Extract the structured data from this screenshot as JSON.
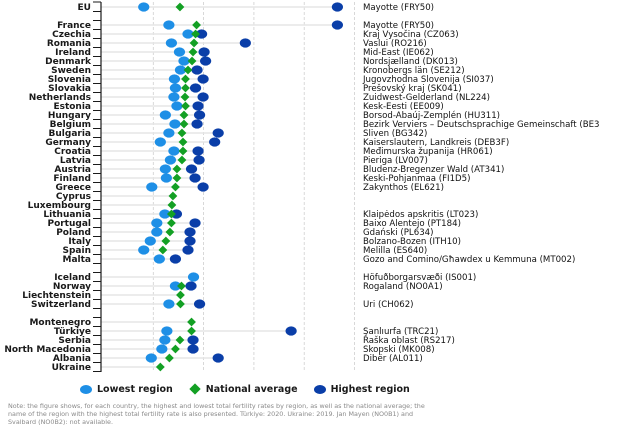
{
  "colors": {
    "lowest": "#1e8fe6",
    "average": "#13a024",
    "highest": "#0a3ea8",
    "row_line": "#e6e6e6",
    "grid": "#cfcfcf",
    "axis": "#1a1a1a"
  },
  "chart_data": {
    "type": "dot-plot",
    "title": "",
    "xlabel": "",
    "ylabel": "",
    "xlim": [
      0,
      5
    ],
    "x_gridlines": [
      1,
      2,
      3,
      4,
      5
    ],
    "x_tick_labels_shown": false,
    "legend_position": "bottom",
    "legend": [
      "Lowest region",
      "National average",
      "Highest region"
    ],
    "groups": [
      {
        "rows": [
          {
            "country": "EU",
            "low": 0.81,
            "avg": 1.53,
            "high": 4.66,
            "high_region": "Mayotte (FRY50)"
          }
        ]
      },
      {
        "rows": [
          {
            "country": "France",
            "low": 1.31,
            "avg": 1.86,
            "high": 4.66,
            "high_region": "Mayotte (FRY50)"
          },
          {
            "country": "Czechia",
            "low": 1.69,
            "avg": 1.84,
            "high": 1.96,
            "high_region": "Kraj Vysočina (CZ063)"
          },
          {
            "country": "Romania",
            "low": 1.36,
            "avg": 1.81,
            "high": 2.83,
            "high_region": "Vaslui (RO216)"
          },
          {
            "country": "Ireland",
            "low": 1.52,
            "avg": 1.79,
            "high": 2.01,
            "high_region": "Mid-East (IE062)"
          },
          {
            "country": "Denmark",
            "low": 1.61,
            "avg": 1.77,
            "high": 2.04,
            "high_region": "Nordsjælland (DK013)"
          },
          {
            "country": "Sweden",
            "low": 1.54,
            "avg": 1.69,
            "high": 1.87,
            "high_region": "Kronobergs län (SE212)"
          },
          {
            "country": "Slovenia",
            "low": 1.42,
            "avg": 1.64,
            "high": 1.99,
            "high_region": "Jugovzhodna Slovenija (SI037)"
          },
          {
            "country": "Slovakia",
            "low": 1.44,
            "avg": 1.64,
            "high": 1.84,
            "high_region": "Prešovský kraj (SK041)"
          },
          {
            "country": "Netherlands",
            "low": 1.41,
            "avg": 1.63,
            "high": 1.99,
            "high_region": "Zuidwest-Gelderland (NL224)"
          },
          {
            "country": "Estonia",
            "low": 1.47,
            "avg": 1.64,
            "high": 1.89,
            "high_region": "Kesk-Eesti (EE009)"
          },
          {
            "country": "Hungary",
            "low": 1.24,
            "avg": 1.61,
            "high": 1.92,
            "high_region": "Borsod-Abaúj-Zemplén (HU311)"
          },
          {
            "country": "Belgium",
            "low": 1.43,
            "avg": 1.61,
            "high": 1.87,
            "high_region": "Bezirk Verviers – Deutschsprachige Gemeinschaft (BE3"
          },
          {
            "country": "Bulgaria",
            "low": 1.31,
            "avg": 1.57,
            "high": 2.29,
            "high_region": "Sliven (BG342)"
          },
          {
            "country": "Germany",
            "low": 1.14,
            "avg": 1.59,
            "high": 2.22,
            "high_region": "Kaiserslautern, Landkreis (DEB3F)"
          },
          {
            "country": "Croatia",
            "low": 1.41,
            "avg": 1.59,
            "high": 1.89,
            "high_region": "Međimurska županija (HR061)"
          },
          {
            "country": "Latvia",
            "low": 1.34,
            "avg": 1.57,
            "high": 1.91,
            "high_region": "Pieriga (LV007)"
          },
          {
            "country": "Austria",
            "low": 1.24,
            "avg": 1.47,
            "high": 1.76,
            "high_region": "Bludenz-Bregenzer Wald (AT341)"
          },
          {
            "country": "Finland",
            "low": 1.26,
            "avg": 1.47,
            "high": 1.83,
            "high_region": "Keski-Pohjanmaa (FI1D5)"
          },
          {
            "country": "Greece",
            "low": 0.97,
            "avg": 1.44,
            "high": 1.99,
            "high_region": "Zakynthos (EL621)"
          },
          {
            "country": "Cyprus",
            "low": null,
            "avg": 1.39,
            "high": null,
            "high_region": ""
          },
          {
            "country": "Luxembourg",
            "low": null,
            "avg": 1.37,
            "high": null,
            "high_region": ""
          },
          {
            "country": "Lithuania",
            "low": 1.23,
            "avg": 1.36,
            "high": 1.46,
            "high_region": "Klaipėdos apskritis (LT023)"
          },
          {
            "country": "Portugal",
            "low": 1.07,
            "avg": 1.36,
            "high": 1.83,
            "high_region": "Baixo Alentejo (PT184)"
          },
          {
            "country": "Poland",
            "low": 1.07,
            "avg": 1.33,
            "high": 1.73,
            "high_region": "Gdański (PL634)"
          },
          {
            "country": "Italy",
            "low": 0.94,
            "avg": 1.25,
            "high": 1.73,
            "high_region": "Bolzano-Bozen (ITH10)"
          },
          {
            "country": "Spain",
            "low": 0.81,
            "avg": 1.19,
            "high": 1.69,
            "high_region": "Melilla (ES640)"
          },
          {
            "country": "Malta",
            "low": 1.12,
            "avg": null,
            "high": 1.44,
            "high_region": "Gozo and Comino/Għawdex u Kemmuna (MT002)"
          }
        ]
      },
      {
        "rows": [
          {
            "country": "Iceland",
            "low": 1.8,
            "avg": null,
            "high": null,
            "high_region": "Höfuðborgarsvæði (IS001)"
          },
          {
            "country": "Norway",
            "low": 1.44,
            "avg": 1.56,
            "high": 1.75,
            "high_region": "Rogaland (NO0A1)"
          },
          {
            "country": "Liechtenstein",
            "low": null,
            "avg": 1.54,
            "high": null,
            "high_region": ""
          },
          {
            "country": "Switzerland",
            "low": 1.31,
            "avg": 1.54,
            "high": 1.92,
            "high_region": "Uri (CH062)"
          }
        ]
      },
      {
        "rows": [
          {
            "country": "Montenegro",
            "low": null,
            "avg": 1.76,
            "high": null,
            "high_region": ""
          },
          {
            "country": "Türkiye",
            "low": 1.27,
            "avg": 1.76,
            "high": 3.74,
            "high_region": "Şanlıurfa (TRC21)"
          },
          {
            "country": "Serbia",
            "low": 1.23,
            "avg": 1.53,
            "high": 1.79,
            "high_region": "Raška oblast (RS217)"
          },
          {
            "country": "North Macedonia",
            "low": 1.17,
            "avg": 1.44,
            "high": 1.79,
            "high_region": "Skopski (MK008)"
          },
          {
            "country": "Albania",
            "low": 0.96,
            "avg": 1.32,
            "high": 2.29,
            "high_region": "Dibër (AL011)"
          },
          {
            "country": "Ukraine",
            "low": null,
            "avg": 1.14,
            "high": null,
            "high_region": ""
          }
        ]
      }
    ]
  },
  "legend": {
    "lowest": "Lowest region",
    "average": "National average",
    "highest": "Highest region"
  },
  "note": "Note: the figure shows, for each country, the highest and lowest total fertility rates by region, as well as the national average; the name of the region with the highest total fertility rate is also presented. Türkiye: 2020. Ukraine: 2019. Jan Mayen (NO0B1) and Svalbard (NO0B2): not available."
}
